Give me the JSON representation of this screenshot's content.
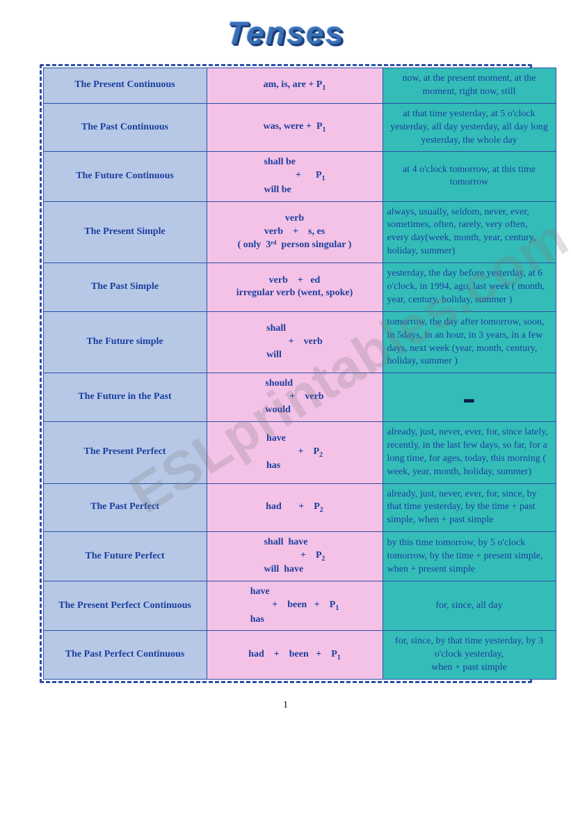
{
  "title": "Tenses",
  "watermark": "ESLprintables.com",
  "page_number": "1",
  "columns": {
    "name_width": 222,
    "form_width": 240,
    "sig_width": 236
  },
  "colors": {
    "name_bg": "#b7c8e6",
    "form_bg": "#f4c2e6",
    "sig_bg": "#34bdb8",
    "text": "#1a3f9e",
    "border": "#2a4fa8",
    "title": "#3a6fb8"
  },
  "rows": [
    {
      "name": "The Present Continuous",
      "form_type": "simple",
      "form": "am, is, are + P",
      "form_sub": "1",
      "signals": "now, at the present moment, at the moment, right now, still",
      "sig_center": true
    },
    {
      "name": "The Past Continuous",
      "form_type": "simple",
      "form": "was, were +  P",
      "form_sub": "1",
      "signals": "at  that time yesterday, at 5 o'clock yesterday, all day yesterday, all day long yesterday, the whole day",
      "sig_center": true
    },
    {
      "name": "The Future Continuous",
      "form_type": "brace",
      "form_top": "shall be",
      "form_mid": "             +      P",
      "form_sub": "1",
      "form_bot": "will be",
      "signals": "at 4 o'clock tomorrow, at this time tomorrow",
      "sig_center": true
    },
    {
      "name": "The Present Simple",
      "form_type": "lines",
      "form_lines": [
        "verb",
        "verb    +    s, es",
        "( only  3ʳᵈ  person singular )"
      ],
      "signals": "always, usually, seldom, never, ever, sometimes, often, rarely, very often, every day(week, month, year, century, holiday, summer)"
    },
    {
      "name": "The Past Simple",
      "form_type": "lines",
      "form_lines": [
        "verb    +   ed",
        "irregular verb (went, spoke)"
      ],
      "signals": "yesterday, the day before yesterday, at 6 o'clock, in 1994, ago, last week ( month, year, century, holiday, summer )"
    },
    {
      "name": "The Future simple",
      "form_type": "brace",
      "form_top": "shall",
      "form_mid": "         +    verb",
      "form_bot": "will",
      "signals": "tomorrow, the day after tomorrow, soon, in 5days, in an hour, in 3 years, in a few days, next week (year, month, century, holiday, summer )"
    },
    {
      "name": "The Future in the Past",
      "form_type": "brace",
      "form_top": "should",
      "form_mid": "          +    verb",
      "form_bot": "would",
      "signals": "-",
      "sig_dash": true
    },
    {
      "name": "The Present Perfect",
      "form_type": "brace",
      "form_top": "have",
      "form_mid": "             +    P",
      "form_sub": "2",
      "form_bot": "has",
      "signals": "already, just, never, ever, for, since lately, recently, in the last few days, so far, for a long time, for ages, today, this morning ( week, year, month, holiday, summer)"
    },
    {
      "name": "The Past Perfect",
      "form_type": "simple",
      "form": "had       +    P",
      "form_sub": "2",
      "signals": "already, just, never, ever, for, since, by that time yesterday, by the time + past simple, when + past simple"
    },
    {
      "name": "The Future Perfect",
      "form_type": "brace",
      "form_top": "shall  have",
      "form_mid": "               +    P",
      "form_sub": "2",
      "form_bot": "will  have",
      "signals": "by this time tomorrow, by 5 o'clock tomorrow, by the time + present simple, when + present simple"
    },
    {
      "name": "The Present Perfect Continuous",
      "form_type": "brace",
      "form_top": "have",
      "form_mid": "         +    been   +    P",
      "form_sub": "1",
      "form_bot": "has",
      "signals": "for, since, all day",
      "sig_center": true
    },
    {
      "name": "The Past Perfect Continuous",
      "form_type": "simple",
      "form": "had    +    been   +    P",
      "form_sub": "1",
      "signals": "for, since, by that time yesterday, by 3 o'clock yesterday,\nwhen + past simple",
      "sig_center": true
    }
  ]
}
